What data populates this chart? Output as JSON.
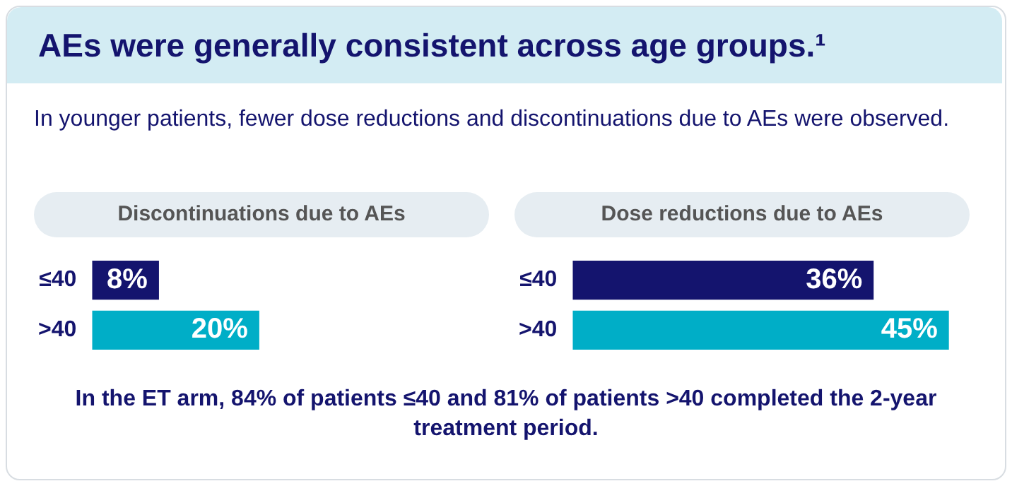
{
  "chart_data": [
    {
      "type": "bar",
      "orientation": "horizontal",
      "title": "Discontinuations due to AEs",
      "annotations": [
        "AEs were generally consistent across age groups.¹",
        "In younger patients, fewer dose reductions and discontinuations due to AEs were observed."
      ],
      "categories": [
        "≤40",
        ">40"
      ],
      "values": [
        8,
        20
      ],
      "colors": [
        "#14146e",
        "#00aec7"
      ],
      "value_labels": [
        "8%",
        "20%"
      ],
      "grid": false,
      "legend": false,
      "tick_labels": "y"
    },
    {
      "type": "bar",
      "orientation": "horizontal",
      "title": "Dose reductions due to AEs",
      "annotations": [
        "In the ET arm, 84% of patients ≤40 and 81% of patients >40 completed the 2-year treatment period."
      ],
      "categories": [
        "≤40",
        ">40"
      ],
      "values": [
        36,
        45
      ],
      "colors": [
        "#14146e",
        "#00aec7"
      ],
      "value_labels": [
        "36%",
        "45%"
      ],
      "grid": false,
      "legend": false,
      "tick_labels": "y"
    }
  ]
}
